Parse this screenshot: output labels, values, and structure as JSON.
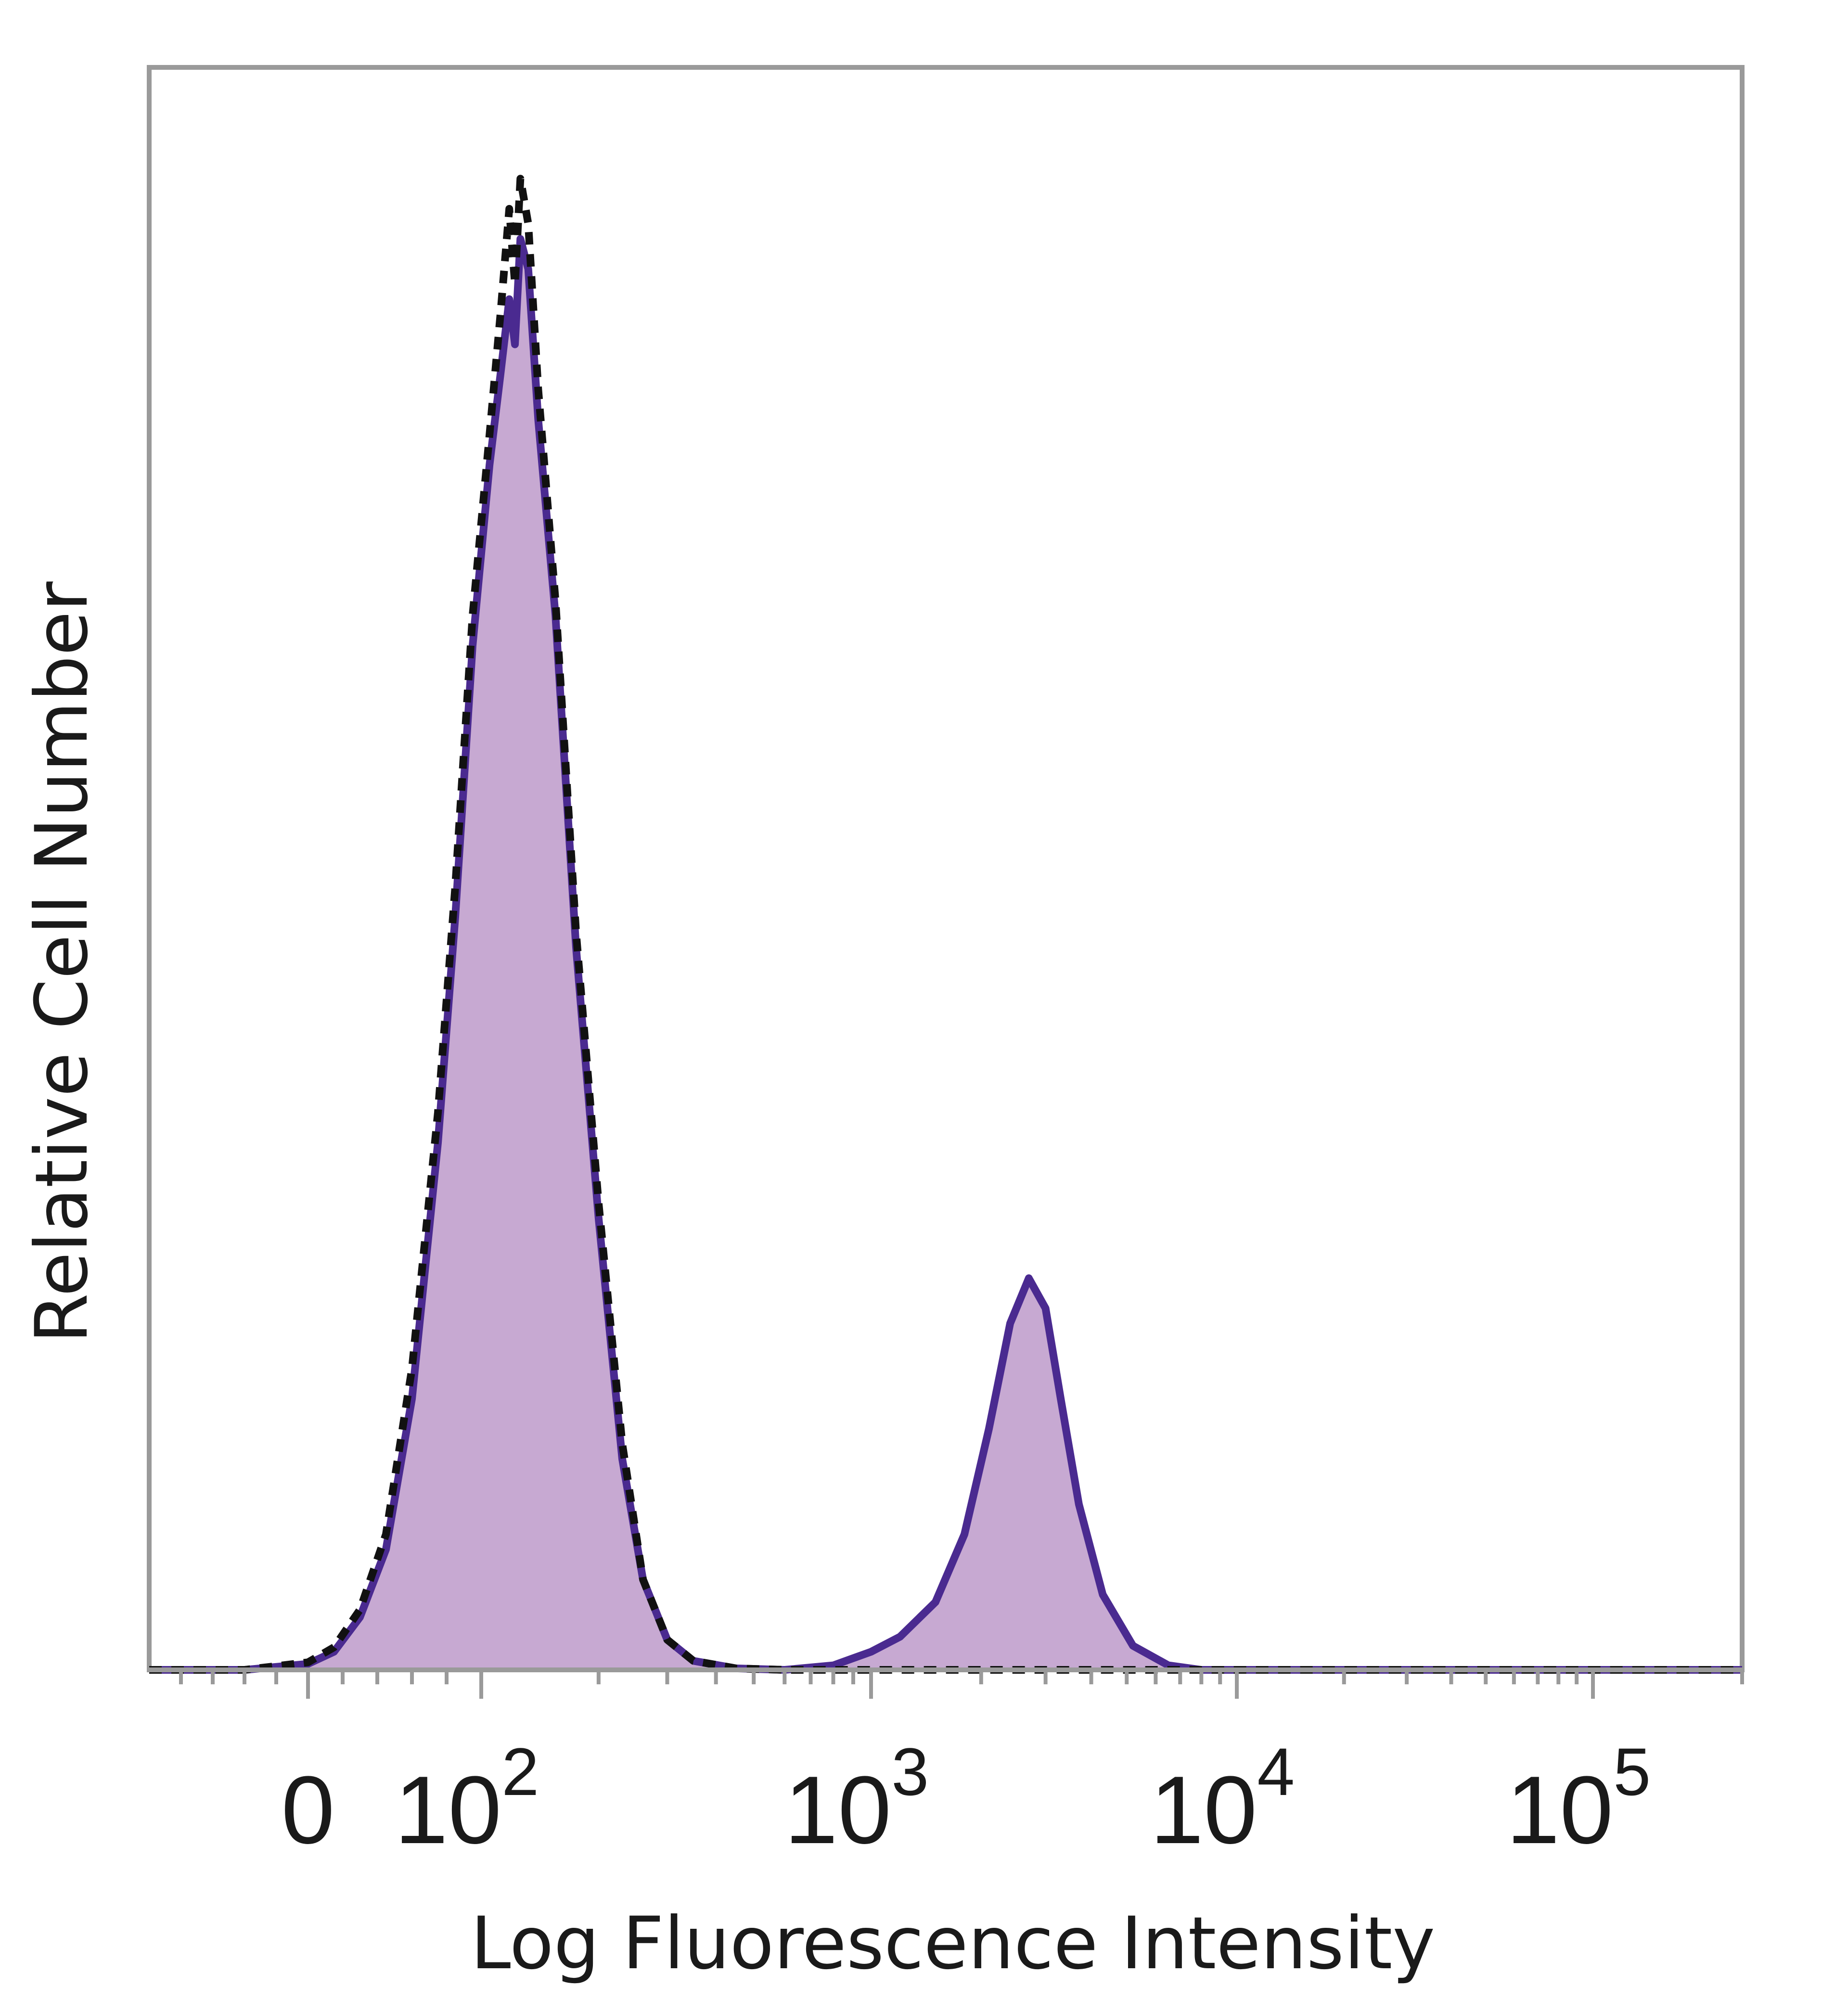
{
  "chart_data": {
    "type": "area",
    "title": "",
    "xlabel": "Log Fluorescence Intensity",
    "ylabel": "Relative Cell Number",
    "x_scale": "biexponential",
    "xlim": [
      -100,
      200000
    ],
    "ylim": [
      0,
      100
    ],
    "x_ticks": [
      {
        "value": 0,
        "base": "0",
        "exp": ""
      },
      {
        "value": 100,
        "base": "10",
        "exp": "2"
      },
      {
        "value": 1000,
        "base": "10",
        "exp": "3"
      },
      {
        "value": 10000,
        "base": "10",
        "exp": "4"
      },
      {
        "value": 100000,
        "base": "10",
        "exp": "5"
      }
    ],
    "grid": false,
    "series": [
      {
        "style": "filled-solid",
        "fill": "#c7a9d2",
        "stroke": "#4a2a90",
        "points": [
          [
            -100,
            0
          ],
          [
            -40,
            0
          ],
          [
            0,
            0.4
          ],
          [
            15,
            1.2
          ],
          [
            30,
            3.5
          ],
          [
            45,
            8
          ],
          [
            60,
            18
          ],
          [
            75,
            35
          ],
          [
            85,
            50
          ],
          [
            95,
            68
          ],
          [
            105,
            80
          ],
          [
            112,
            86
          ],
          [
            118,
            91
          ],
          [
            122,
            88
          ],
          [
            126,
            95
          ],
          [
            132,
            93
          ],
          [
            140,
            83
          ],
          [
            155,
            70
          ],
          [
            175,
            48
          ],
          [
            200,
            30
          ],
          [
            230,
            14
          ],
          [
            260,
            6
          ],
          [
            300,
            2
          ],
          [
            350,
            0.6
          ],
          [
            450,
            0.1
          ],
          [
            600,
            0
          ],
          [
            800,
            0.3
          ],
          [
            1000,
            1.2
          ],
          [
            1200,
            2.2
          ],
          [
            1500,
            4.5
          ],
          [
            1800,
            9
          ],
          [
            2100,
            16
          ],
          [
            2400,
            23
          ],
          [
            2700,
            26
          ],
          [
            3000,
            24
          ],
          [
            3300,
            18
          ],
          [
            3700,
            11
          ],
          [
            4300,
            5
          ],
          [
            5200,
            1.6
          ],
          [
            6500,
            0.3
          ],
          [
            8000,
            0
          ],
          [
            200000,
            0
          ]
        ]
      },
      {
        "style": "dashed-outline",
        "fill": "none",
        "stroke": "#111111",
        "points": [
          [
            -100,
            0
          ],
          [
            -40,
            0
          ],
          [
            0,
            0.5
          ],
          [
            15,
            1.5
          ],
          [
            30,
            4
          ],
          [
            45,
            9
          ],
          [
            60,
            20
          ],
          [
            75,
            37
          ],
          [
            85,
            52
          ],
          [
            95,
            70
          ],
          [
            105,
            82
          ],
          [
            112,
            90
          ],
          [
            118,
            97
          ],
          [
            122,
            92
          ],
          [
            126,
            99
          ],
          [
            132,
            96
          ],
          [
            140,
            85
          ],
          [
            155,
            71
          ],
          [
            175,
            49
          ],
          [
            200,
            31
          ],
          [
            230,
            15
          ],
          [
            260,
            6
          ],
          [
            300,
            2
          ],
          [
            350,
            0.6
          ],
          [
            450,
            0.1
          ],
          [
            600,
            0
          ],
          [
            200000,
            0
          ]
        ]
      }
    ]
  }
}
